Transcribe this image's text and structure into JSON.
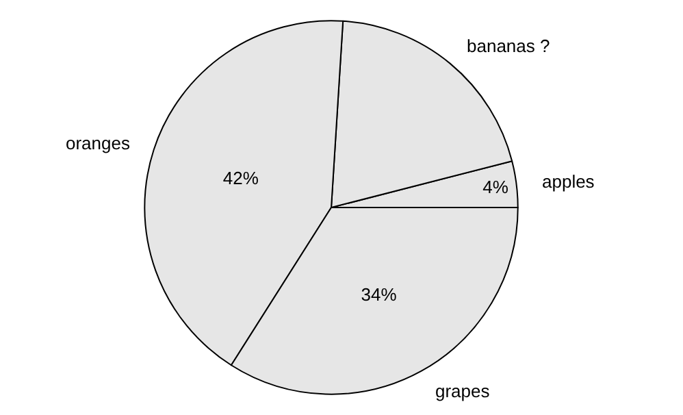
{
  "chart_data": {
    "type": "pie",
    "categories": [
      "apples",
      "bananas ?",
      "oranges",
      "grapes"
    ],
    "values": [
      4,
      20,
      42,
      34
    ],
    "value_labels": [
      "4%",
      null,
      "42%",
      "34%"
    ],
    "colors": [
      "#e6e6e6",
      "#e6e6e6",
      "#e6e6e6",
      "#e6e6e6"
    ],
    "legend": false
  }
}
